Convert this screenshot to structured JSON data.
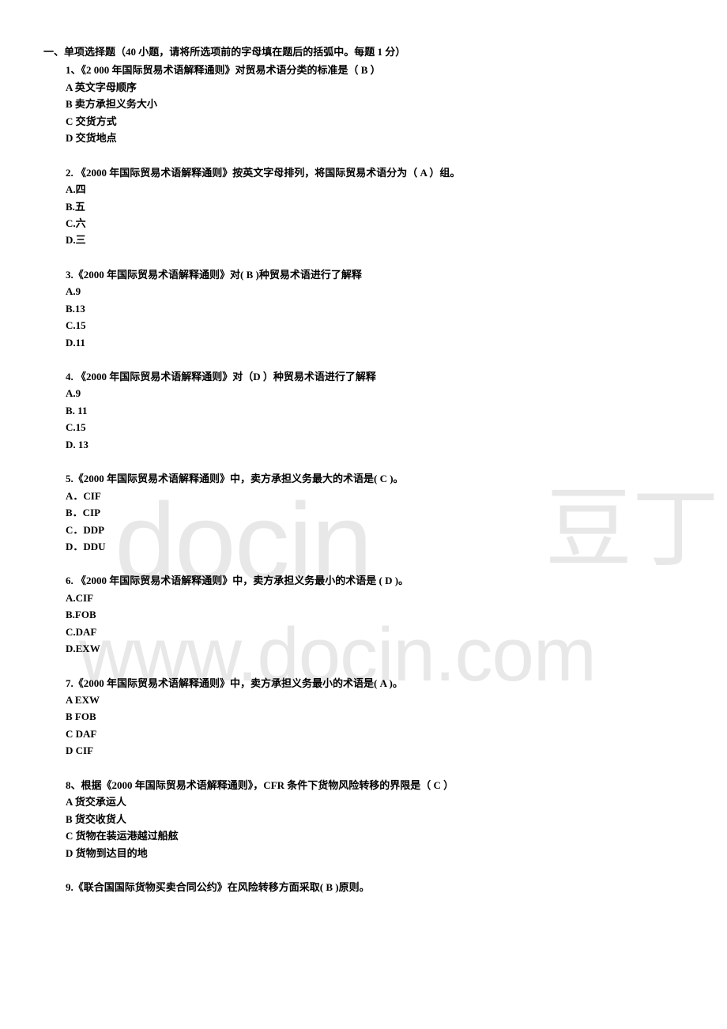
{
  "section_header": "一、单项选择题（40 小题，请将所选项前的字母填在题后的括弧中。每题 1 分）",
  "questions": [
    {
      "text": "1、《2 000 年国际贸易术语解释通则》对贸易术语分类的标准是（  B  ）",
      "options": [
        "A 英文字母顺序",
        "B 卖方承担义务大小",
        "C 交货方式",
        "D 交货地点"
      ]
    },
    {
      "text": "2. 《2000 年国际贸易术语解释通则》按英文字母排列，将国际贸易术语分为（ A ）组。",
      "options": [
        "A.四",
        "B.五",
        "C.六",
        "D.三"
      ]
    },
    {
      "text": "3.《2000 年国际贸易术语解释通则》对(   B   )种贸易术语进行了解释",
      "options": [
        "A.9",
        "B.13",
        "C.15",
        "D.11"
      ]
    },
    {
      "text": "4. 《2000 年国际贸易术语解释通则》对（D ）种贸易术语进行了解释",
      "options": [
        "A.9",
        "B. 11",
        "C.15",
        "D. 13"
      ]
    },
    {
      "text": "5.《2000 年国际贸易术语解释通则》中，卖方承担义务最大的术语是(  C  )。",
      "options": [
        "A．CIF",
        "B．CIP",
        "C．DDP",
        "D．DDU"
      ]
    },
    {
      "text": "6. 《2000 年国际贸易术语解释通则》中，卖方承担义务最小的术语是 ( D )。",
      "options": [
        "A.CIF",
        "B.FOB",
        "C.DAF",
        "D.EXW"
      ]
    },
    {
      "text": "7.《2000 年国际贸易术语解释通则》中，卖方承担义务最小的术语是(  A  )。",
      "options": [
        "A EXW",
        "B FOB",
        "C DAF",
        "D  CIF"
      ]
    },
    {
      "text": "8、根据《2000 年国际贸易术语解释通则》，CFR 条件下货物风险转移的界限是（ C  ）",
      "options": [
        "A 货交承运人",
        "B 货交收货人",
        "C 货物在装运港越过船舷",
        "D 货物到达目的地"
      ]
    },
    {
      "text": "9.《联合国国际货物买卖合同公约》在风险转移方面采取(  B   )原则。",
      "options": []
    }
  ],
  "watermark": {
    "docin": "docin",
    "url": "www.docin.com",
    "chinese": "豆丁"
  },
  "colors": {
    "text": "#000000",
    "background": "#ffffff",
    "watermark": "#e8e8e8"
  }
}
